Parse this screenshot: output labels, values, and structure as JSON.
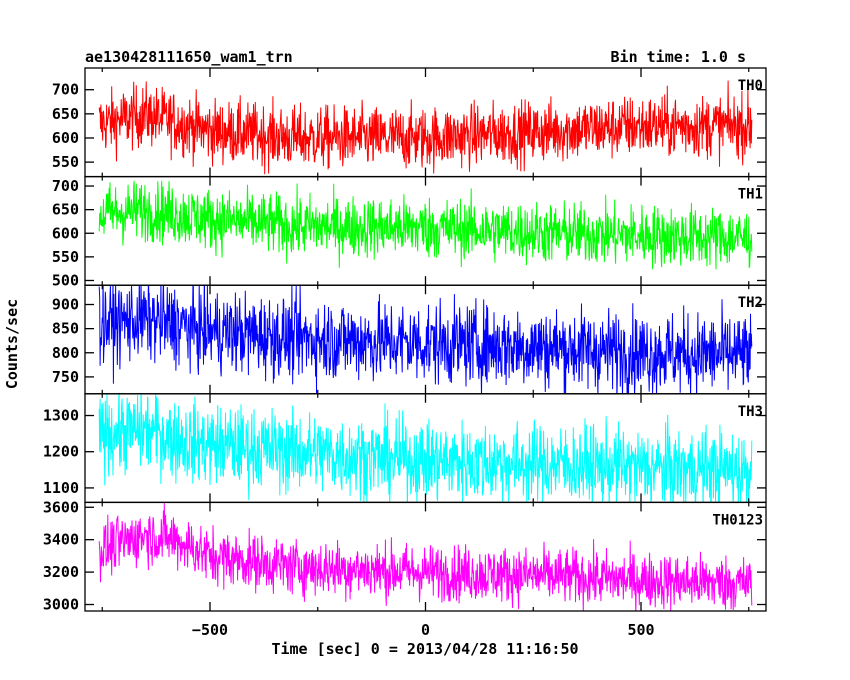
{
  "chart_data": {
    "type": "line",
    "title": "ae130428111650_wam1_trn",
    "subtitle": "Bin time: 1.0 s",
    "xlabel": "Time [sec] 0 = 2013/04/28 11:16:50",
    "ylabel": "Counts/sec",
    "xlim": [
      -790,
      790
    ],
    "xticks": [
      -500,
      0,
      500
    ],
    "grid": false,
    "panels": [
      {
        "name": "TH0",
        "color": "#ff0000",
        "ylim": [
          520,
          745
        ],
        "yticks": [
          550,
          600,
          650,
          700
        ],
        "trend": [
          [
            -750,
            630
          ],
          [
            -650,
            648
          ],
          [
            -500,
            615
          ],
          [
            -300,
            600
          ],
          [
            0,
            600
          ],
          [
            300,
            615
          ],
          [
            500,
            625
          ],
          [
            750,
            625
          ]
        ],
        "noise": 32
      },
      {
        "name": "TH1",
        "color": "#00ff00",
        "ylim": [
          490,
          720
        ],
        "yticks": [
          500,
          550,
          600,
          650,
          700
        ],
        "trend": [
          [
            -750,
            640
          ],
          [
            -650,
            650
          ],
          [
            -500,
            630
          ],
          [
            -300,
            615
          ],
          [
            0,
            612
          ],
          [
            300,
            600
          ],
          [
            500,
            595
          ],
          [
            750,
            590
          ]
        ],
        "noise": 32
      },
      {
        "name": "TH2",
        "color": "#0000ff",
        "ylim": [
          715,
          940
        ],
        "yticks": [
          750,
          800,
          850,
          900
        ],
        "trend": [
          [
            -750,
            860
          ],
          [
            -650,
            870
          ],
          [
            -500,
            845
          ],
          [
            -300,
            830
          ],
          [
            0,
            820
          ],
          [
            300,
            810
          ],
          [
            500,
            800
          ],
          [
            750,
            795
          ]
        ],
        "noise": 42
      },
      {
        "name": "TH3",
        "color": "#00ffff",
        "ylim": [
          1060,
          1360
        ],
        "yticks": [
          1100,
          1200,
          1300
        ],
        "trend": [
          [
            -750,
            1250
          ],
          [
            -650,
            1260
          ],
          [
            -550,
            1225
          ],
          [
            -300,
            1200
          ],
          [
            0,
            1175
          ],
          [
            300,
            1165
          ],
          [
            500,
            1155
          ],
          [
            750,
            1150
          ]
        ],
        "noise": 55
      },
      {
        "name": "TH0123",
        "color": "#ff00ff",
        "ylim": [
          2960,
          3630
        ],
        "yticks": [
          3000,
          3200,
          3400,
          3600
        ],
        "trend": [
          [
            -750,
            3340
          ],
          [
            -650,
            3430
          ],
          [
            -580,
            3400
          ],
          [
            -500,
            3300
          ],
          [
            -300,
            3230
          ],
          [
            0,
            3200
          ],
          [
            300,
            3175
          ],
          [
            500,
            3150
          ],
          [
            750,
            3130
          ]
        ],
        "noise": 85
      }
    ],
    "series_range": [
      -757,
      757
    ]
  }
}
